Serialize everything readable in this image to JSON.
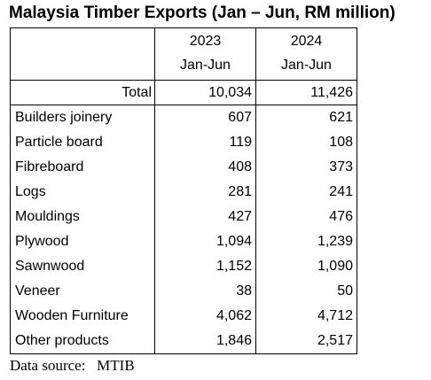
{
  "title": "Malaysia Timber Exports (Jan – Jun, RM million)",
  "columns": [
    {
      "year": "2023",
      "period": "Jan-Jun"
    },
    {
      "year": "2024",
      "period": "Jan-Jun"
    }
  ],
  "total": {
    "label": "Total",
    "values": [
      "10,034",
      "11,426"
    ]
  },
  "rows": [
    {
      "label": "Builders joinery",
      "values": [
        "607",
        "621"
      ]
    },
    {
      "label": "Particle board",
      "values": [
        "119",
        "108"
      ]
    },
    {
      "label": "Fibreboard",
      "values": [
        "408",
        "373"
      ]
    },
    {
      "label": "Logs",
      "values": [
        "281",
        "241"
      ]
    },
    {
      "label": "Mouldings",
      "values": [
        "427",
        "476"
      ]
    },
    {
      "label": "Plywood",
      "values": [
        "1,094",
        "1,239"
      ]
    },
    {
      "label": "Sawnwood",
      "values": [
        "1,152",
        "1,090"
      ]
    },
    {
      "label": "Veneer",
      "values": [
        "38",
        "50"
      ]
    },
    {
      "label": "Wooden Furniture",
      "values": [
        "4,062",
        "4,712"
      ]
    },
    {
      "label": "Other products",
      "values": [
        "1,846",
        "2,517"
      ]
    }
  ],
  "source": "Data source:   MTIB",
  "chart_data": {
    "type": "table",
    "title": "Malaysia Timber Exports (Jan – Jun, RM million)",
    "columns": [
      "2023 Jan-Jun",
      "2024 Jan-Jun"
    ],
    "total": {
      "2023": 10034,
      "2024": 11426
    },
    "categories": [
      "Builders joinery",
      "Particle board",
      "Fibreboard",
      "Logs",
      "Mouldings",
      "Plywood",
      "Sawnwood",
      "Veneer",
      "Wooden Furniture",
      "Other products"
    ],
    "series": [
      {
        "name": "2023",
        "values": [
          607,
          119,
          408,
          281,
          427,
          1094,
          1152,
          38,
          4062,
          1846
        ]
      },
      {
        "name": "2024",
        "values": [
          621,
          108,
          373,
          241,
          476,
          1239,
          1090,
          50,
          4712,
          2517
        ]
      }
    ]
  }
}
